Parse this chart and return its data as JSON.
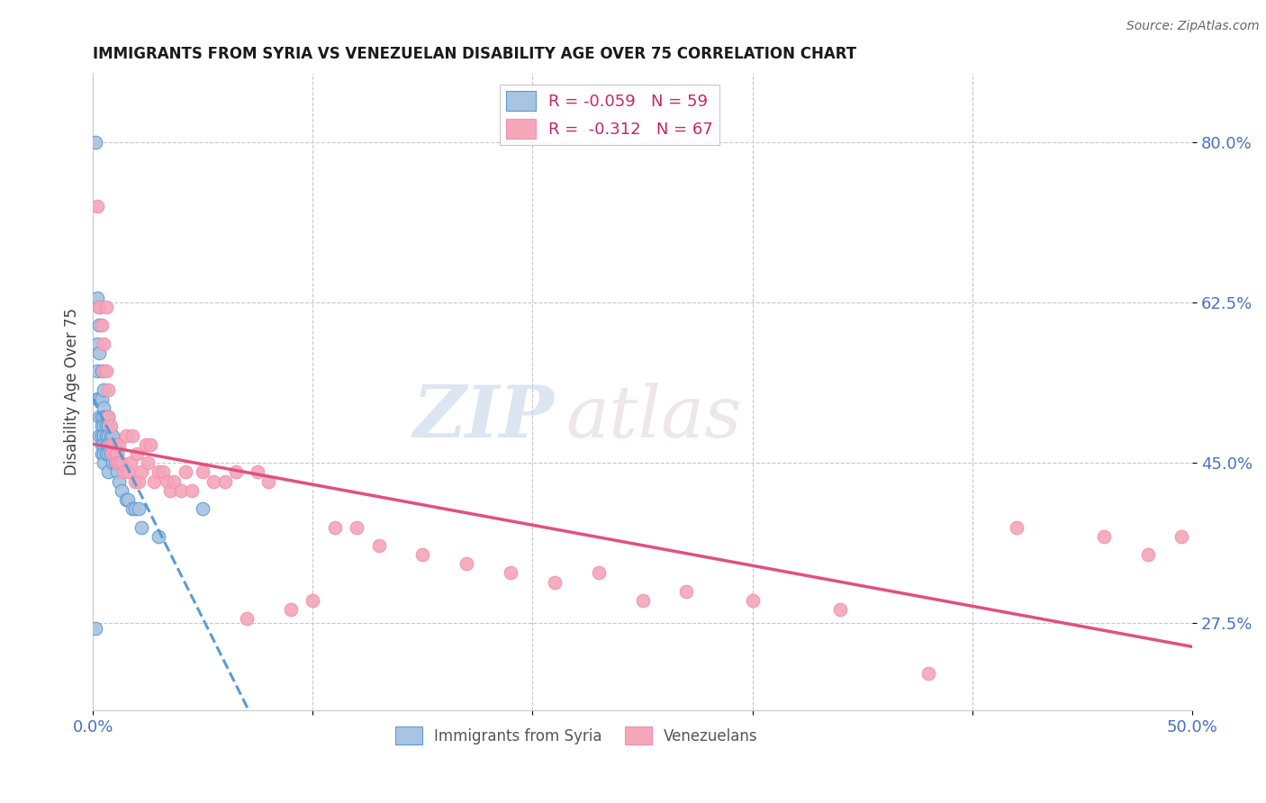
{
  "title": "IMMIGRANTS FROM SYRIA VS VENEZUELAN DISABILITY AGE OVER 75 CORRELATION CHART",
  "source": "Source: ZipAtlas.com",
  "ylabel": "Disability Age Over 75",
  "ytick_labels": [
    "27.5%",
    "45.0%",
    "62.5%",
    "80.0%"
  ],
  "ytick_values": [
    0.275,
    0.45,
    0.625,
    0.8
  ],
  "xrange": [
    0.0,
    0.5
  ],
  "yrange": [
    0.18,
    0.875
  ],
  "background_color": "#ffffff",
  "watermark_text": "ZIP",
  "watermark_text2": "atlas",
  "legend_blue_label": "R = -0.059   N = 59",
  "legend_pink_label": "R =  -0.312   N = 67",
  "legend_bottom_blue": "Immigrants from Syria",
  "legend_bottom_pink": "Venezuelans",
  "blue_fill": "#a8c4e0",
  "pink_fill": "#f4a7b9",
  "blue_edge": "#5b9bd5",
  "pink_edge": "#f48fb1",
  "syria_x": [
    0.001,
    0.001,
    0.002,
    0.002,
    0.002,
    0.002,
    0.003,
    0.003,
    0.003,
    0.003,
    0.003,
    0.003,
    0.004,
    0.004,
    0.004,
    0.004,
    0.004,
    0.004,
    0.004,
    0.005,
    0.005,
    0.005,
    0.005,
    0.005,
    0.005,
    0.005,
    0.005,
    0.006,
    0.006,
    0.006,
    0.006,
    0.006,
    0.007,
    0.007,
    0.007,
    0.007,
    0.007,
    0.007,
    0.008,
    0.008,
    0.008,
    0.009,
    0.009,
    0.009,
    0.01,
    0.01,
    0.011,
    0.011,
    0.012,
    0.012,
    0.013,
    0.015,
    0.016,
    0.018,
    0.019,
    0.021,
    0.022,
    0.03,
    0.05
  ],
  "syria_y": [
    0.8,
    0.27,
    0.63,
    0.58,
    0.55,
    0.52,
    0.62,
    0.6,
    0.57,
    0.52,
    0.5,
    0.48,
    0.55,
    0.52,
    0.5,
    0.49,
    0.48,
    0.47,
    0.46,
    0.53,
    0.51,
    0.5,
    0.49,
    0.48,
    0.47,
    0.46,
    0.45,
    0.5,
    0.49,
    0.48,
    0.47,
    0.46,
    0.5,
    0.49,
    0.48,
    0.47,
    0.46,
    0.44,
    0.48,
    0.47,
    0.46,
    0.48,
    0.47,
    0.45,
    0.47,
    0.45,
    0.46,
    0.44,
    0.45,
    0.43,
    0.42,
    0.41,
    0.41,
    0.4,
    0.4,
    0.4,
    0.38,
    0.37,
    0.4
  ],
  "venezuela_x": [
    0.002,
    0.003,
    0.004,
    0.005,
    0.005,
    0.006,
    0.006,
    0.007,
    0.007,
    0.008,
    0.008,
    0.009,
    0.009,
    0.01,
    0.01,
    0.011,
    0.011,
    0.012,
    0.012,
    0.013,
    0.014,
    0.015,
    0.016,
    0.017,
    0.018,
    0.019,
    0.02,
    0.021,
    0.022,
    0.024,
    0.025,
    0.026,
    0.028,
    0.03,
    0.032,
    0.034,
    0.035,
    0.037,
    0.04,
    0.042,
    0.045,
    0.05,
    0.055,
    0.06,
    0.065,
    0.07,
    0.075,
    0.08,
    0.09,
    0.1,
    0.11,
    0.12,
    0.13,
    0.15,
    0.17,
    0.19,
    0.21,
    0.23,
    0.25,
    0.27,
    0.3,
    0.34,
    0.38,
    0.42,
    0.46,
    0.48,
    0.495
  ],
  "venezuela_y": [
    0.73,
    0.62,
    0.6,
    0.58,
    0.55,
    0.62,
    0.55,
    0.53,
    0.5,
    0.49,
    0.47,
    0.47,
    0.46,
    0.46,
    0.47,
    0.46,
    0.45,
    0.47,
    0.45,
    0.45,
    0.44,
    0.48,
    0.44,
    0.45,
    0.48,
    0.43,
    0.46,
    0.43,
    0.44,
    0.47,
    0.45,
    0.47,
    0.43,
    0.44,
    0.44,
    0.43,
    0.42,
    0.43,
    0.42,
    0.44,
    0.42,
    0.44,
    0.43,
    0.43,
    0.44,
    0.28,
    0.44,
    0.43,
    0.29,
    0.3,
    0.38,
    0.38,
    0.36,
    0.35,
    0.34,
    0.33,
    0.32,
    0.33,
    0.3,
    0.31,
    0.3,
    0.29,
    0.22,
    0.38,
    0.37,
    0.35,
    0.37
  ]
}
